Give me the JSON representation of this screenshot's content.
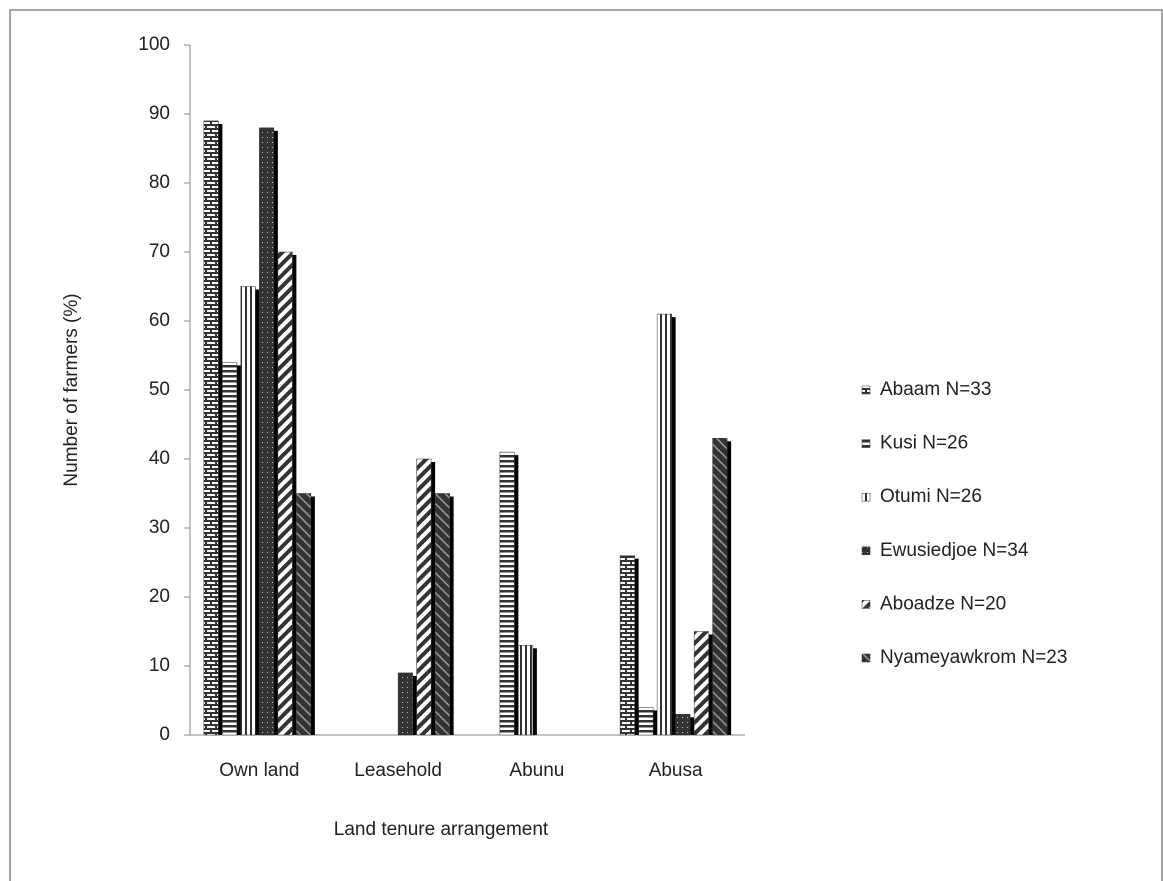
{
  "chart_data": {
    "type": "bar",
    "x_label": "Land tenure arrangement",
    "y_label": "Number of farmers (%)",
    "categories": [
      "Own land",
      "Leasehold",
      "Abunu",
      "Abusa"
    ],
    "series": [
      {
        "name": "Abaam N=33",
        "color": "#333333",
        "values": [
          89,
          0,
          0,
          26
        ]
      },
      {
        "name": "Kusi N=26",
        "color": "#333333",
        "values": [
          54,
          0,
          41,
          4
        ]
      },
      {
        "name": "Otumi N=26",
        "color": "#333333",
        "values": [
          65,
          0,
          13,
          61
        ]
      },
      {
        "name": "Ewusiedjoe N=34",
        "color": "#333333",
        "values": [
          88,
          9,
          0,
          3
        ]
      },
      {
        "name": "Aboadze N=20",
        "color": "#333333",
        "values": [
          70,
          40,
          0,
          15
        ]
      },
      {
        "name": "Nyameyawkrom N=23",
        "color": "#333333",
        "values": [
          35,
          35,
          0,
          43
        ]
      }
    ],
    "ylim": [
      0,
      100
    ],
    "yticks": [
      0,
      10,
      20,
      30,
      40,
      50,
      60,
      70,
      80,
      90,
      100
    ],
    "grid": false,
    "legend": "right"
  }
}
